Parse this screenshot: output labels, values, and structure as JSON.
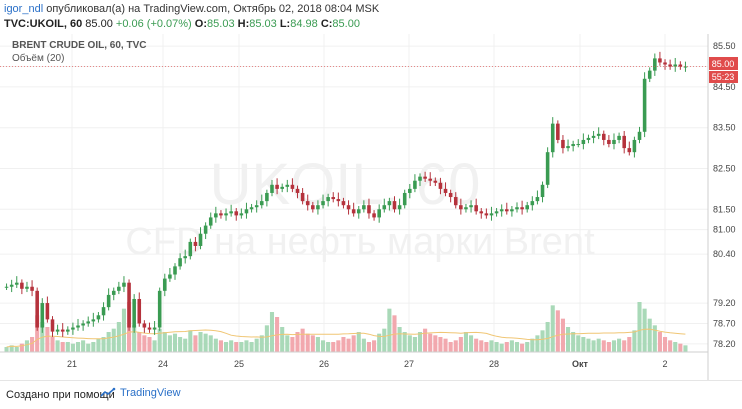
{
  "header": {
    "user": "igor_ndl",
    "published": "опубликовал(а) на TradingView.com, Октябрь 02, 2018 08:04 MSK",
    "symbol": "TVC:UKOIL, 60",
    "last": "85.00",
    "change": "+0.06 (+0.07%)",
    "o_label": "O:",
    "o_value": "85.03",
    "h_label": "H:",
    "h_value": "85.03",
    "l_label": "L:",
    "l_value": "84.98",
    "c_label": "C:",
    "c_value": "85.00"
  },
  "legend": {
    "title": "BRENT CRUDE OIL, 60, TVC",
    "volume": "Объём (20)"
  },
  "watermark": {
    "symbol": "UKOIL, 60",
    "description": "CFD на нефть марки Brent"
  },
  "badges": {
    "price": "85.00",
    "countdown": "55:23"
  },
  "footer": {
    "made_with": "Создано при помощи",
    "brand": "TradingView",
    "logo_icon": "tradingview-logo-icon"
  },
  "colors": {
    "up": "#3a9b52",
    "down": "#b5323c",
    "vol_up": "#a9d9b8",
    "vol_down": "#f2a8ae",
    "vol_ma": "#f0c674",
    "badge": "#e04b4b",
    "link": "#2a70c8"
  },
  "chart_data": {
    "type": "candlestick",
    "y_ticks": [
      "85.50",
      "85.00",
      "84.50",
      "83.50",
      "82.50",
      "81.50",
      "81.00",
      "80.40",
      "79.20",
      "78.70",
      "78.20"
    ],
    "x_ticks": [
      "21",
      "24",
      "25",
      "26",
      "27",
      "28",
      "Окт",
      "2"
    ],
    "ylim": [
      78.0,
      85.7
    ],
    "grid": true,
    "close": [
      79.6,
      79.65,
      79.7,
      79.55,
      79.6,
      79.5,
      78.6,
      79.2,
      78.8,
      78.5,
      78.55,
      78.5,
      78.55,
      78.6,
      78.65,
      78.7,
      78.75,
      78.8,
      78.9,
      79.1,
      79.4,
      79.5,
      79.6,
      79.7,
      78.6,
      79.3,
      78.7,
      78.6,
      78.55,
      78.6,
      79.5,
      79.8,
      79.9,
      80.1,
      80.3,
      80.35,
      80.7,
      80.6,
      80.9,
      81.1,
      81.3,
      81.4,
      81.35,
      81.4,
      81.45,
      81.35,
      81.4,
      81.5,
      81.55,
      81.6,
      81.7,
      81.9,
      82.1,
      82.0,
      82.05,
      82.1,
      82.0,
      81.9,
      81.7,
      81.6,
      81.5,
      81.6,
      81.7,
      81.8,
      81.75,
      81.7,
      81.6,
      81.5,
      81.4,
      81.5,
      81.6,
      81.4,
      81.3,
      81.5,
      81.6,
      81.7,
      81.5,
      81.6,
      81.9,
      82.0,
      82.2,
      82.3,
      82.25,
      82.2,
      82.15,
      82.0,
      81.9,
      81.8,
      81.6,
      81.5,
      81.55,
      81.6,
      81.45,
      81.4,
      81.35,
      81.4,
      81.45,
      81.5,
      81.45,
      81.5,
      81.55,
      81.5,
      81.6,
      81.7,
      81.8,
      82.1,
      82.9,
      83.6,
      83.2,
      83.0,
      83.05,
      83.1,
      83.1,
      83.2,
      83.25,
      83.3,
      83.35,
      83.2,
      83.1,
      83.2,
      83.3,
      83.0,
      82.9,
      83.2,
      83.4,
      84.7,
      84.9,
      85.2,
      85.1,
      85.05,
      85.0,
      85.05,
      85.0,
      85.0
    ],
    "volume": [
      3,
      4,
      3,
      5,
      7,
      9,
      22,
      18,
      15,
      9,
      7,
      6,
      6,
      5,
      6,
      7,
      5,
      6,
      8,
      9,
      12,
      14,
      18,
      26,
      30,
      16,
      12,
      10,
      9,
      7,
      14,
      12,
      10,
      11,
      9,
      8,
      13,
      10,
      12,
      11,
      10,
      8,
      7,
      6,
      7,
      6,
      6,
      7,
      6,
      8,
      10,
      16,
      24,
      21,
      15,
      10,
      9,
      12,
      14,
      11,
      10,
      9,
      7,
      6,
      6,
      7,
      9,
      8,
      10,
      12,
      8,
      6,
      7,
      11,
      14,
      26,
      22,
      15,
      12,
      10,
      9,
      12,
      14,
      11,
      10,
      9,
      8,
      6,
      7,
      9,
      12,
      10,
      8,
      7,
      6,
      7,
      6,
      5,
      6,
      7,
      6,
      5,
      6,
      8,
      10,
      13,
      18,
      28,
      25,
      20,
      15,
      12,
      10,
      9,
      8,
      7,
      8,
      7,
      6,
      7,
      8,
      7,
      9,
      13,
      30,
      26,
      20,
      16,
      12,
      9,
      7,
      6,
      5,
      4
    ]
  }
}
